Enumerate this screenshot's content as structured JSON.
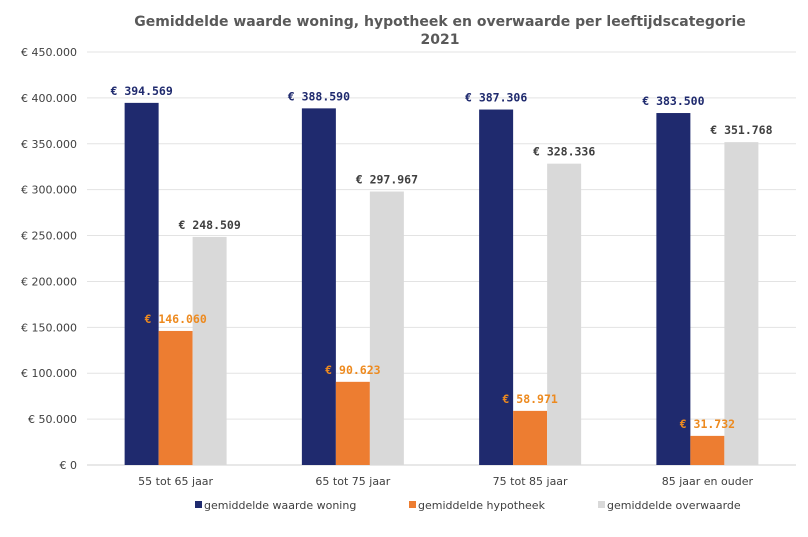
{
  "chart_data": {
    "type": "bar",
    "title_line1": "Gemiddelde waarde woning, hypotheek en overwaarde per leeftijdscategorie",
    "title_line2": "2021",
    "categories": [
      "55 tot 65 jaar",
      "65 tot 75 jaar",
      "75 tot 85 jaar",
      "85 jaar en ouder"
    ],
    "series": [
      {
        "name": "gemiddelde waarde woning",
        "color": "#1f2a6e",
        "label_color": "#1f2a6e",
        "values": [
          394569,
          388590,
          387306,
          383500
        ],
        "labels": [
          "€ 394.569",
          "€ 388.590",
          "€ 387.306",
          "€ 383.500"
        ]
      },
      {
        "name": "gemiddelde hypotheek",
        "color": "#ed7d31",
        "label_color": "#ed8a1f",
        "values": [
          146060,
          90623,
          58971,
          31732
        ],
        "labels": [
          "€ 146.060",
          "€ 90.623",
          "€ 58.971",
          "€ 31.732"
        ]
      },
      {
        "name": "gemiddelde overwaarde",
        "color": "#d9d9d9",
        "label_color": "#404040",
        "values": [
          248509,
          297967,
          328336,
          351768
        ],
        "labels": [
          "€ 248.509",
          "€ 297.967",
          "€ 328.336",
          "€ 351.768"
        ]
      }
    ],
    "ylim": [
      0,
      450000
    ],
    "yticks": [
      {
        "value": 0,
        "label": "€ 0"
      },
      {
        "value": 50000,
        "label": "€ 50.000"
      },
      {
        "value": 100000,
        "label": "€ 100.000"
      },
      {
        "value": 150000,
        "label": "€ 150.000"
      },
      {
        "value": 200000,
        "label": "€ 200.000"
      },
      {
        "value": 250000,
        "label": "€ 250.000"
      },
      {
        "value": 300000,
        "label": "€ 300.000"
      },
      {
        "value": 350000,
        "label": "€ 350.000"
      },
      {
        "value": 400000,
        "label": "€ 400.000"
      },
      {
        "value": 450000,
        "label": "€ 450.000"
      }
    ],
    "grid": true,
    "legend_position": "bottom"
  }
}
